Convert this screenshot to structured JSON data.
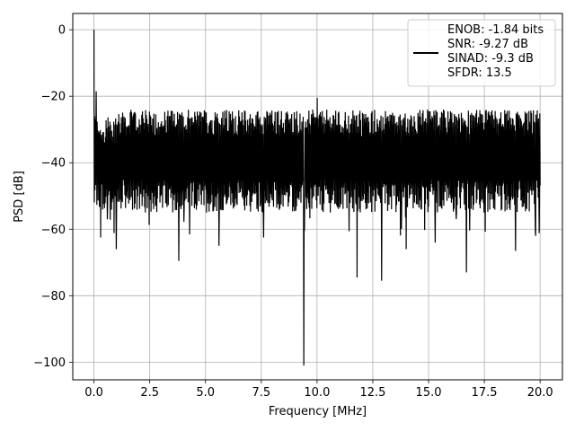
{
  "chart_data": {
    "type": "line",
    "title": "",
    "xlabel": "Frequency [MHz]",
    "ylabel": "PSD [dB]",
    "xlim": [
      -0.95,
      21.0
    ],
    "ylim": [
      -105.3,
      4.9
    ],
    "xticks": [
      0.0,
      2.5,
      5.0,
      7.5,
      10.0,
      12.5,
      15.0,
      17.5,
      20.0
    ],
    "xtick_labels": [
      "0.0",
      "2.5",
      "5.0",
      "7.5",
      "10.0",
      "12.5",
      "15.0",
      "17.5",
      "20.0"
    ],
    "yticks": [
      0,
      -20,
      -40,
      -60,
      -80,
      -100
    ],
    "ytick_labels": [
      "0",
      "−20",
      "−40",
      "−60",
      "−80",
      "−100"
    ],
    "grid": true,
    "legend_position": "top-right",
    "series": [
      {
        "color": "#000000",
        "x_range": [
          0.0,
          20.0
        ],
        "noise_upper_envelope_db": -28,
        "noise_lower_envelope_db": -50,
        "peaks": [
          {
            "x": 0.0,
            "y": 0.0
          },
          {
            "x": 0.1,
            "y": -18.5
          },
          {
            "x": 10.0,
            "y": -20.5
          }
        ],
        "dips": [
          {
            "x": 0.3,
            "y": -62.5
          },
          {
            "x": 0.6,
            "y": -57.0
          },
          {
            "x": 1.0,
            "y": -66.0
          },
          {
            "x": 3.8,
            "y": -69.5
          },
          {
            "x": 5.6,
            "y": -65.0
          },
          {
            "x": 7.6,
            "y": -62.5
          },
          {
            "x": 9.4,
            "y": -101.0
          },
          {
            "x": 11.8,
            "y": -74.5
          },
          {
            "x": 12.9,
            "y": -75.5
          },
          {
            "x": 14.0,
            "y": -66.0
          },
          {
            "x": 15.3,
            "y": -64.0
          },
          {
            "x": 16.7,
            "y": -73.0
          },
          {
            "x": 18.9,
            "y": -66.5
          },
          {
            "x": 19.8,
            "y": -62.0
          }
        ]
      }
    ],
    "legend_lines": [
      "ENOB: -1.84 bits",
      "SNR: -9.27 dB",
      "SINAD: -9.3 dB",
      "SFDR: 13.5"
    ]
  }
}
